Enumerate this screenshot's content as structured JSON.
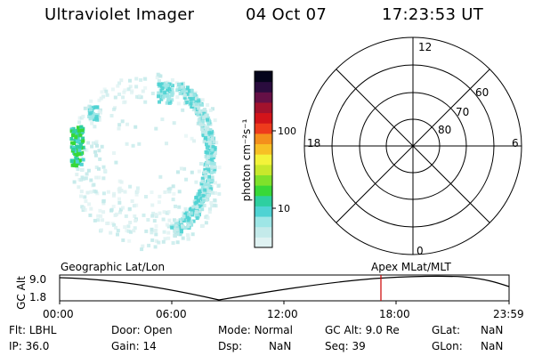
{
  "header": {
    "instrument": "Ultraviolet Imager",
    "date": "04 Oct 07",
    "time": "17:23:53 UT"
  },
  "colorbar": {
    "label": "photon cm⁻²s⁻¹",
    "ticks": [
      {
        "label": "100",
        "value": 100
      },
      {
        "label": "10",
        "value": 10
      }
    ],
    "colors": [
      "#dff2f2",
      "#c4eaea",
      "#9ee6e6",
      "#4fd3d3",
      "#2ecfa0",
      "#38d838",
      "#7fe12b",
      "#c8e82c",
      "#f3f33a",
      "#f7c025",
      "#f48f1c",
      "#ee3b1c",
      "#d3141a",
      "#a3122d",
      "#651046",
      "#2a0c3e",
      "#05051b"
    ]
  },
  "polar_grid": {
    "mlt_labels": {
      "top": "12",
      "left": "18",
      "right": "6",
      "bottom": "0"
    },
    "lat_labels": [
      "60",
      "70",
      "80"
    ]
  },
  "timeline": {
    "y_axis_label": "GC Alt",
    "y_ticks": [
      "9.0",
      "1.8"
    ],
    "left_label": "Geographic Lat/Lon",
    "right_label": "Apex  MLat/MLT",
    "x_ticks": [
      "00:00",
      "06:00",
      "12:00",
      "18:00",
      "23:59"
    ],
    "current_time_marker": "17:23",
    "marker_color": "#cc0000"
  },
  "info": {
    "filter_label": "Flt:",
    "filter_value": "LBHL",
    "door_label": "Door:",
    "door_value": "Open",
    "mode_label": "Mode:",
    "mode_value": "Normal",
    "gcalt_label": "GC Alt:",
    "gcalt_value": "9.0 Re",
    "glat_label": "GLat:",
    "glat_value": "NaN",
    "ip_label": "IP:",
    "ip_value": "36.0",
    "gain_label": "Gain:",
    "gain_value": "14",
    "dsp_label": "Dsp:",
    "dsp_value": "NaN",
    "seq_label": "Seq:",
    "seq_value": "39",
    "glon_label": "GLon:",
    "glon_value": "NaN"
  }
}
